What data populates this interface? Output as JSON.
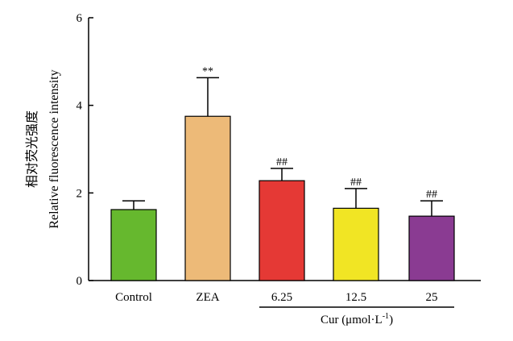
{
  "chart_data": {
    "type": "bar",
    "categories": [
      "Control",
      "ZEA",
      "6.25",
      "12.5",
      "25"
    ],
    "values": [
      1.62,
      3.75,
      2.28,
      1.65,
      1.47
    ],
    "errors": [
      0.2,
      0.88,
      0.28,
      0.45,
      0.35
    ],
    "annotations": [
      "",
      "**",
      "##",
      "##",
      "##"
    ],
    "bar_colors": [
      "#66b82e",
      "#edba78",
      "#e53935",
      "#f1e524",
      "#8a3b92"
    ],
    "ylabel_cn": "相对荧光强度",
    "ylabel_en": "Relative fluorescence intensity",
    "group_label": "Cur (μmol·L",
    "group_label_sup": "-1",
    "group_label_end": ")",
    "ylim": [
      0,
      6
    ],
    "yticks": [
      "0",
      "2",
      "4",
      "6"
    ],
    "grid": false
  }
}
